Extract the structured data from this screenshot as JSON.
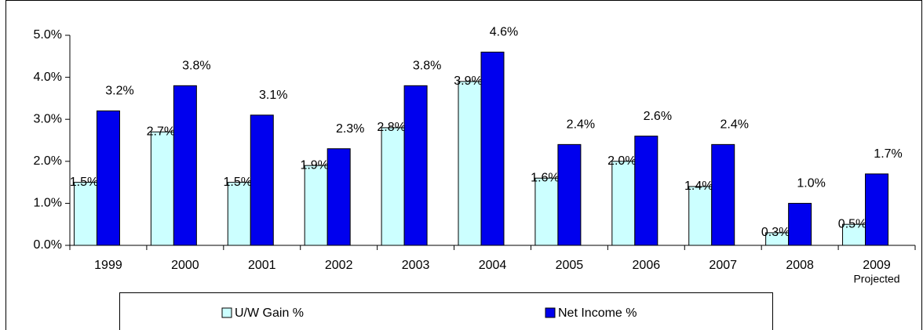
{
  "chart_data": {
    "type": "bar",
    "categories": [
      "1999",
      "2000",
      "2001",
      "2002",
      "2003",
      "2004",
      "2005",
      "2006",
      "2007",
      "2008",
      "2009"
    ],
    "x_annotation": "Projected",
    "series": [
      {
        "name": "U/W Gain %",
        "color": "#ccffff",
        "values": [
          1.5,
          2.7,
          1.5,
          1.9,
          2.8,
          3.9,
          1.6,
          2.0,
          1.4,
          0.3,
          0.5
        ],
        "value_labels": [
          "1.5%",
          "2.7%",
          "1.5%",
          "1.9%",
          "2.8%",
          "3.9%",
          "1.6%",
          "2.0%",
          "1.4%",
          "0.3%",
          "0.5%"
        ]
      },
      {
        "name": "Net Income %",
        "color": "#0000ee",
        "values": [
          3.2,
          3.8,
          3.1,
          2.3,
          3.8,
          4.6,
          2.4,
          2.6,
          2.4,
          1.0,
          1.7
        ],
        "value_labels": [
          "3.2%",
          "3.8%",
          "3.1%",
          "2.3%",
          "3.8%",
          "4.6%",
          "2.4%",
          "2.6%",
          "2.4%",
          "1.0%",
          "1.7%"
        ]
      }
    ],
    "ylim": [
      0,
      5
    ],
    "yticks": [
      {
        "value": 0,
        "label": "0.0%"
      },
      {
        "value": 1,
        "label": "1.0%"
      },
      {
        "value": 2,
        "label": "2.0%"
      },
      {
        "value": 3,
        "label": "3.0%"
      },
      {
        "value": 4,
        "label": "4.0%"
      },
      {
        "value": 5,
        "label": "5.0%"
      }
    ],
    "grid": false,
    "legend": "bottom"
  }
}
